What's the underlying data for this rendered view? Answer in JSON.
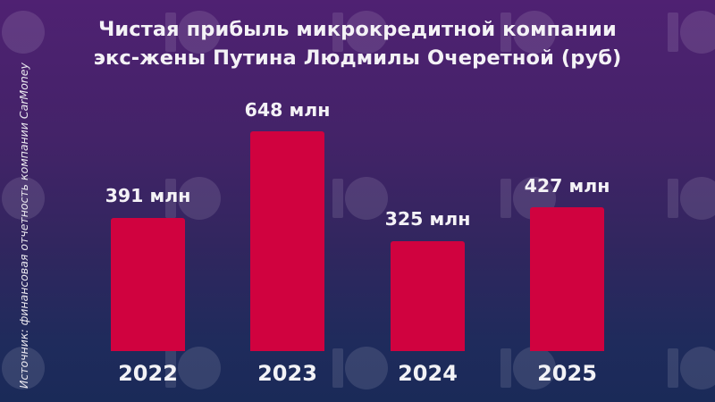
{
  "title": {
    "line1": "Чистая прибыль микрокредитной компании",
    "line2": "экс-жены Путина Людмилы Очеретной (руб)"
  },
  "source": "Источник: финансовая отчетность компании CarMoney",
  "watermark": "IO-logo",
  "colors": {
    "bar": "#d0023f",
    "background_top": "#4f2172",
    "background_bottom": "#1a2a58",
    "text": "#f4f2f6"
  },
  "bars": [
    {
      "year": "2022",
      "label": "391 млн",
      "value": 391
    },
    {
      "year": "2023",
      "label": "648 млн",
      "value": 648
    },
    {
      "year": "2024",
      "label": "325 млн",
      "value": 325
    },
    {
      "year": "2025",
      "label": "427 млн",
      "value": 427
    }
  ],
  "chart_data": {
    "type": "bar",
    "title": "Чистая прибыль микрокредитной компании экс-жены Путина Людмилы Очеретной (руб)",
    "categories": [
      "2022",
      "2023",
      "2024",
      "2025"
    ],
    "values": [
      391,
      648,
      325,
      427
    ],
    "data_labels": [
      "391 млн",
      "648 млн",
      "325 млн",
      "427 млн"
    ],
    "units": "млн руб",
    "xlabel": "",
    "ylabel": "",
    "ylim": [
      0,
      700
    ],
    "grid": false,
    "legend": null,
    "annotations": [
      "Источник: финансовая отчетность компании CarMoney"
    ]
  }
}
